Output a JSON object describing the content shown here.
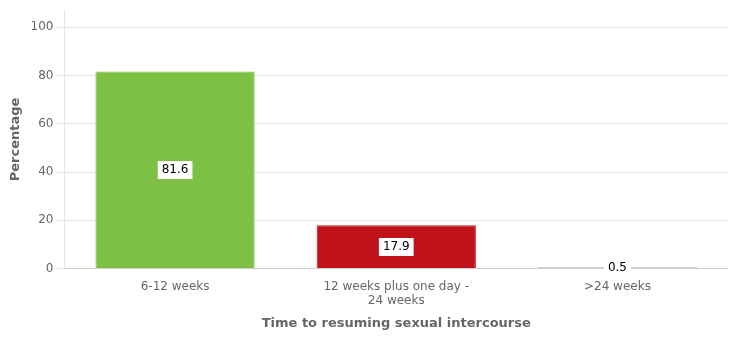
{
  "chart_data": {
    "type": "bar",
    "categories": [
      "6-12 weeks",
      "12 weeks plus one day -\n24 weeks",
      ">24 weeks"
    ],
    "values": [
      81.6,
      17.9,
      0.5
    ],
    "colors": [
      "#7dc044",
      "#c0121a",
      "#1e3a6e"
    ],
    "xlabel": "Time to resuming sexual intercourse",
    "ylabel": "Percentage",
    "ylim": [
      0,
      107
    ],
    "yticks": [
      0,
      20,
      40,
      60,
      80,
      100
    ],
    "grid": true,
    "data_labels": true
  }
}
